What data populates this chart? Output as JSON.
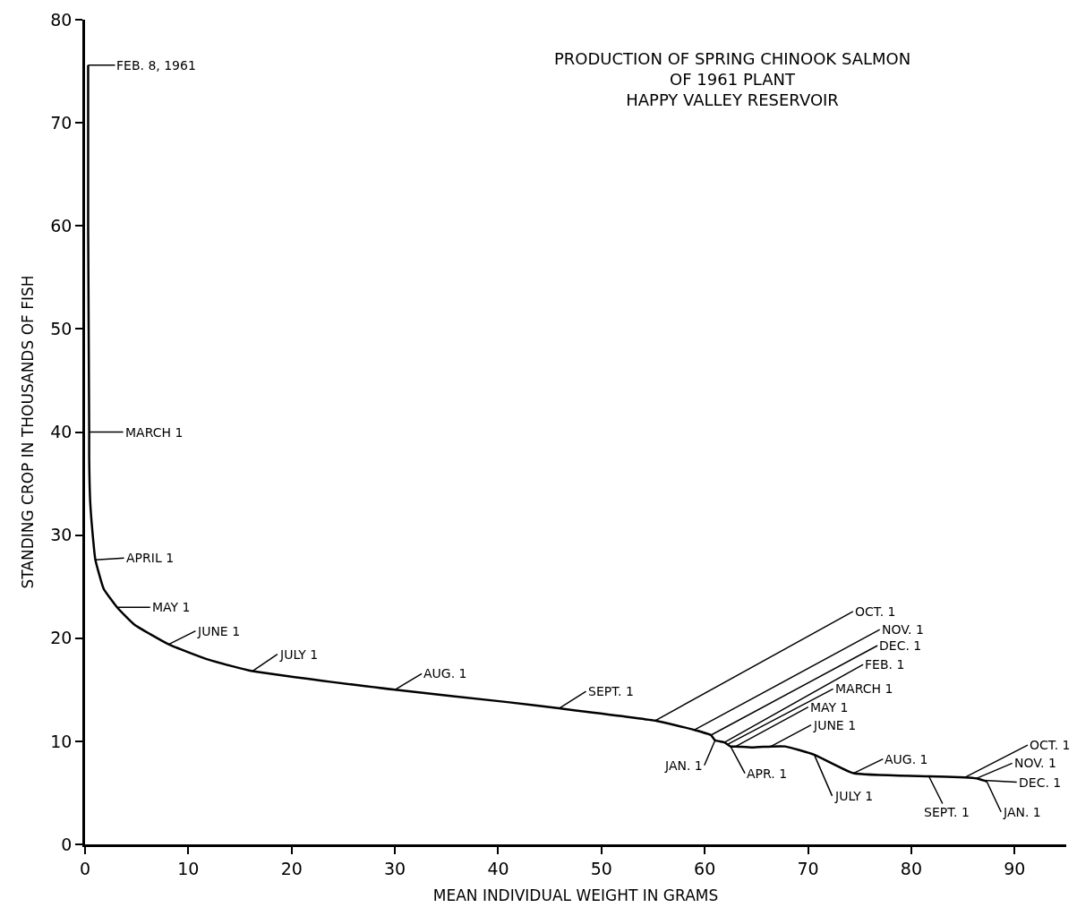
{
  "chart_data": {
    "type": "line",
    "title": "PRODUCTION OF SPRING CHINOOK SALMON\nOF 1961 PLANT\nHAPPY VALLEY RESERVOIR",
    "xlabel": "MEAN INDIVIDUAL WEIGHT IN GRAMS",
    "ylabel": "STANDING CROP IN THOUSANDS OF FISH",
    "series": [
      {
        "color": "#000000",
        "x": [
          0.3,
          0.3,
          0.4,
          0.4,
          0.5,
          0.8,
          1.0,
          1.8,
          3.1,
          4.8,
          8.1,
          12,
          16.2,
          30,
          40.9,
          45.9,
          55.2,
          59,
          60.6,
          61,
          61.9,
          62.2,
          62.5,
          63,
          64.6,
          66.4,
          67.8,
          70.6,
          74.4,
          81.7,
          85.2,
          86.3,
          87,
          87.3
        ],
        "values": [
          75.6,
          60,
          40,
          37.5,
          33.2,
          29.4,
          27.6,
          24.8,
          23.0,
          21.3,
          19.4,
          17.9,
          16.8,
          15.0,
          13.8,
          13.2,
          12.0,
          11.1,
          10.6,
          10.1,
          9.9,
          9.7,
          9.5,
          9.5,
          9.4,
          9.5,
          9.5,
          8.7,
          6.9,
          6.6,
          6.5,
          6.4,
          6.2,
          6.1
        ]
      }
    ],
    "annotations": [
      {
        "text": "FEB. 8, 1961",
        "x": 0.3,
        "y": 75.6
      },
      {
        "text": "MARCH 1",
        "x": 0.4,
        "y": 40
      },
      {
        "text": "APRIL 1",
        "x": 1.0,
        "y": 27.6
      },
      {
        "text": "MAY 1",
        "x": 3.1,
        "y": 23.0
      },
      {
        "text": "JUNE 1",
        "x": 8.1,
        "y": 19.4
      },
      {
        "text": "JULY 1",
        "x": 16.2,
        "y": 16.8
      },
      {
        "text": "AUG. 1",
        "x": 30,
        "y": 15.0
      },
      {
        "text": "SEPT. 1",
        "x": 45.9,
        "y": 13.2
      },
      {
        "text": "OCT. 1",
        "x": 55.2,
        "y": 12.0
      },
      {
        "text": "NOV. 1",
        "x": 59,
        "y": 11.1
      },
      {
        "text": "DEC. 1",
        "x": 60.6,
        "y": 10.6
      },
      {
        "text": "JAN. 1",
        "x": 61,
        "y": 10.1
      },
      {
        "text": "FEB. 1",
        "x": 61.9,
        "y": 9.9
      },
      {
        "text": "MARCH 1",
        "x": 62.2,
        "y": 9.7
      },
      {
        "text": "APR. 1",
        "x": 62.5,
        "y": 9.5
      },
      {
        "text": "MAY 1",
        "x": 63,
        "y": 9.5
      },
      {
        "text": "JUNE 1",
        "x": 66.4,
        "y": 9.5
      },
      {
        "text": "JULY 1",
        "x": 70.6,
        "y": 8.7
      },
      {
        "text": "AUG. 1",
        "x": 74.4,
        "y": 6.9
      },
      {
        "text": "SEPT. 1",
        "x": 81.7,
        "y": 6.6
      },
      {
        "text": "OCT. 1",
        "x": 85.2,
        "y": 6.5
      },
      {
        "text": "NOV. 1",
        "x": 86.3,
        "y": 6.4
      },
      {
        "text": "DEC. 1",
        "x": 87,
        "y": 6.2
      },
      {
        "text": "JAN. 1",
        "x": 87.3,
        "y": 6.1
      }
    ],
    "xlim": [
      0,
      95
    ],
    "xticks": [
      0,
      10,
      20,
      30,
      40,
      50,
      60,
      70,
      80,
      90
    ],
    "ylim": [
      0,
      80
    ],
    "yticks": [
      0,
      10,
      20,
      30,
      40,
      50,
      60,
      70,
      80
    ],
    "marker": "none",
    "line_style": "solid"
  }
}
